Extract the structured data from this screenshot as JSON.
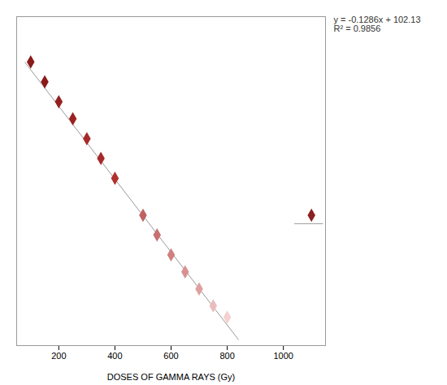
{
  "chart_data": {
    "type": "scatter",
    "xlabel": "DOSES OF GAMMA RAYS (Gy)",
    "annotation": "y = -0.1286x + 102.13\nR² = 0.9856",
    "series": [
      {
        "type": "scatter",
        "x": [
          100,
          150,
          200,
          250,
          300,
          350,
          400,
          500,
          550,
          600,
          650,
          700,
          750,
          800
        ],
        "values": [
          92,
          85,
          78,
          72,
          65,
          58,
          51,
          38,
          31,
          24,
          18,
          12,
          6,
          2
        ],
        "colors": [
          "#8B1A1A",
          "#8B1A1A",
          "#952020",
          "#9B2222",
          "#A52A2A",
          "#A52A2A",
          "#B03030",
          "#C06060",
          "#C87070",
          "#D08080",
          "#D89090",
          "#E0A0A0",
          "#EBBCBC",
          "#F5D0D0"
        ],
        "marker": "diamond"
      },
      {
        "type": "scatter",
        "x": [
          1100
        ],
        "values": [
          38
        ],
        "color": "#8B2020",
        "marker": "diamond"
      },
      {
        "type": "line",
        "x": [
          80,
          840
        ],
        "values": [
          91.842,
          -5.894
        ],
        "color": "#999999",
        "line_style": "solid"
      },
      {
        "type": "line",
        "x": [
          1040,
          1140
        ],
        "values": [
          35,
          35
        ],
        "color": "#999999",
        "line_style": "solid"
      }
    ],
    "xlim": [
      50,
      1150
    ],
    "ylim": [
      -8,
      108
    ],
    "xticks": [
      200,
      400,
      600,
      800,
      1000
    ],
    "grid": false,
    "tick_labels": "x"
  }
}
